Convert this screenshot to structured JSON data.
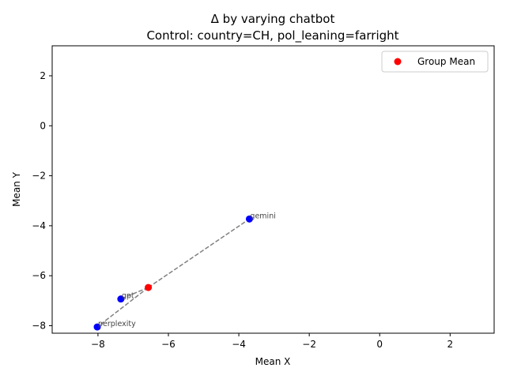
{
  "chart_data": {
    "type": "scatter",
    "title": "Δ by varying chatbot",
    "subtitle": "Control: country=CH, pol_leaning=farright",
    "xlabel": "Mean X",
    "ylabel": "Mean Y",
    "xlim": [
      -9.3,
      3.25
    ],
    "ylim": [
      -8.3,
      3.2
    ],
    "xticks": [
      -8,
      -6,
      -4,
      -2,
      0,
      2
    ],
    "yticks": [
      -8,
      -6,
      -4,
      -2,
      0,
      2
    ],
    "grid": false,
    "legend_position": "top-right",
    "points": [
      {
        "label": "gemini",
        "x": -3.7,
        "y": -3.73
      },
      {
        "label": "gpt",
        "x": -7.35,
        "y": -6.93
      },
      {
        "label": "perplexity",
        "x": -8.02,
        "y": -8.05
      }
    ],
    "group_mean": {
      "name": "Group Mean",
      "x": -6.57,
      "y": -6.47
    },
    "colors": {
      "points": "#0000ff",
      "group_mean": "#ff0000",
      "lines": "#808080",
      "point_label": "#444444"
    }
  }
}
